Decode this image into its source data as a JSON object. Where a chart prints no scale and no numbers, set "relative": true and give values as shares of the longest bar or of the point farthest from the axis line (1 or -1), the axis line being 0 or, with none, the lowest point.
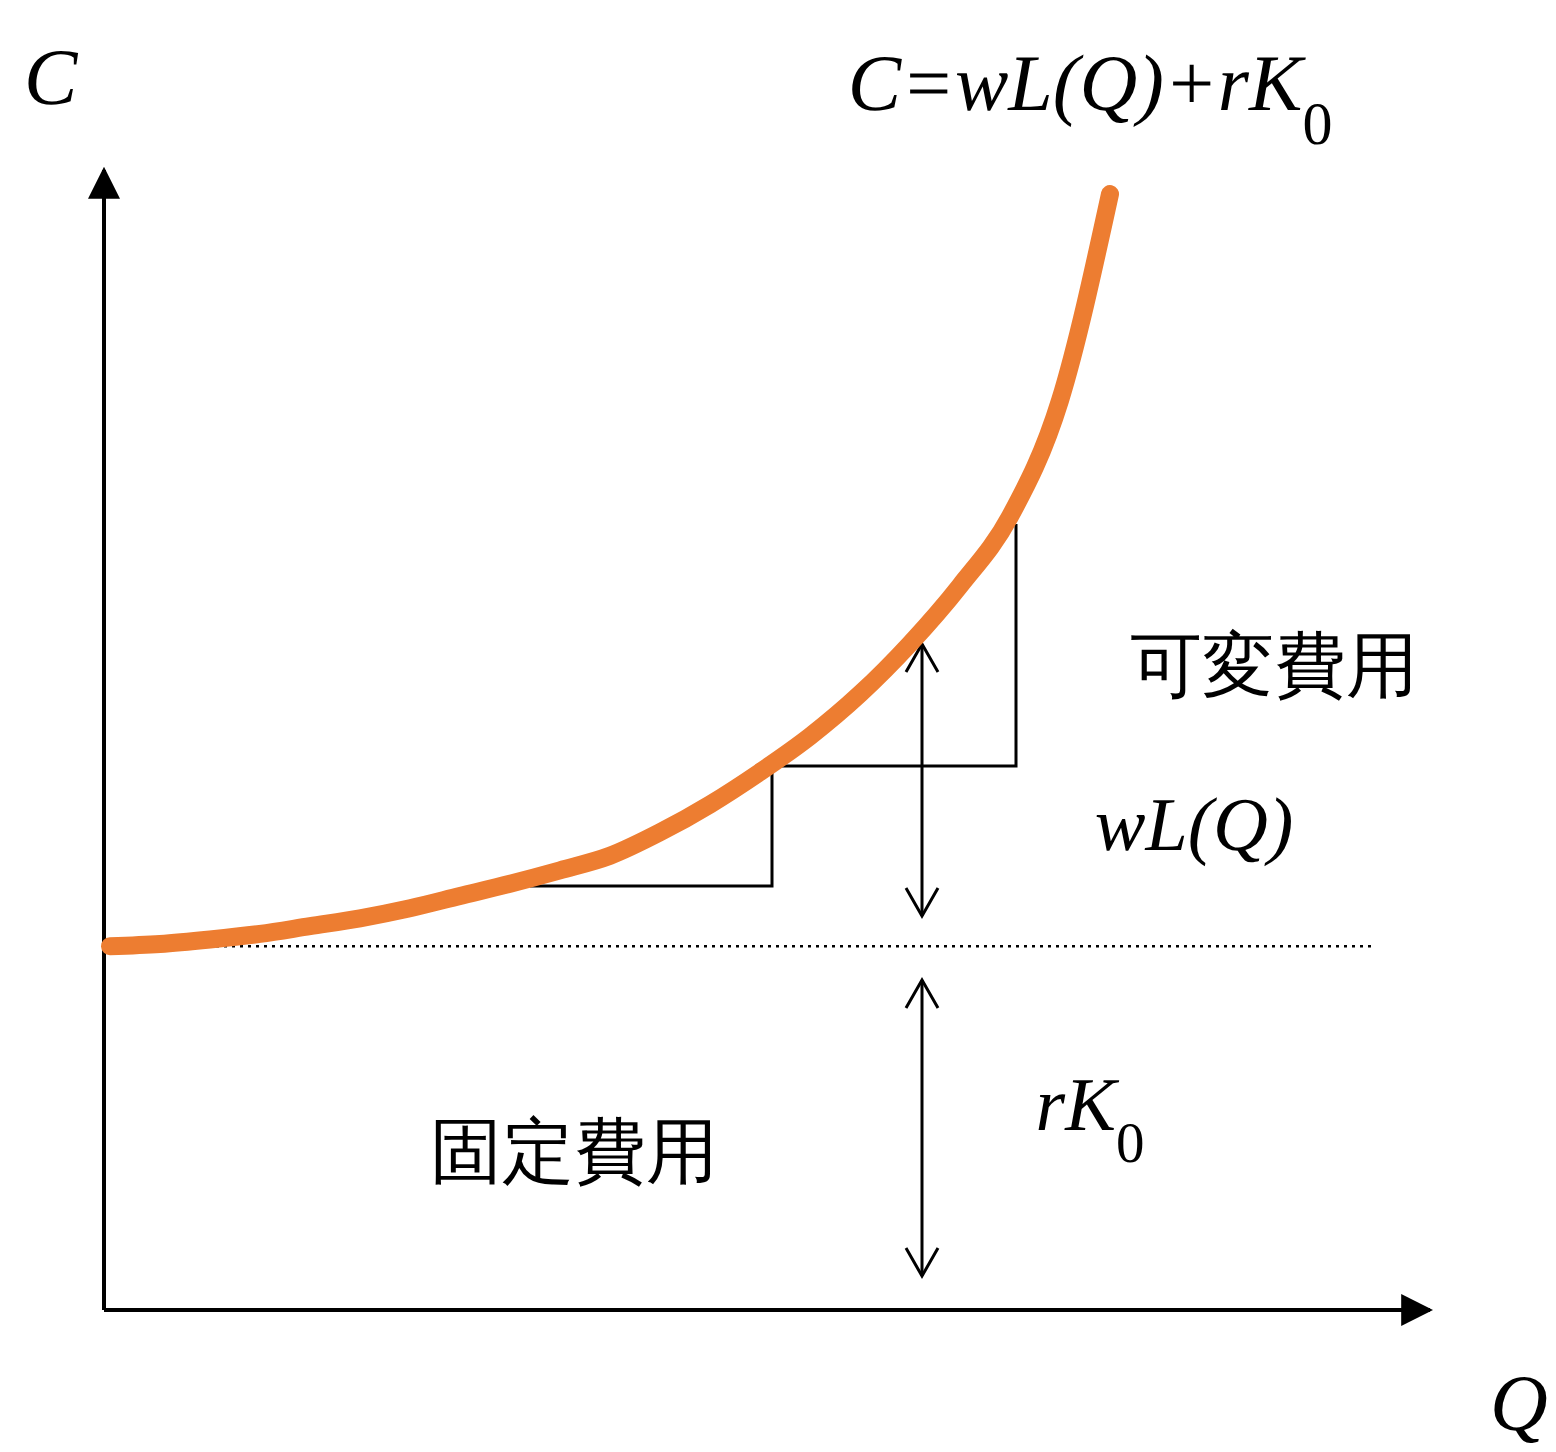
{
  "chart_data": {
    "type": "line",
    "relative": true,
    "xlabel": "Q",
    "ylabel": "C",
    "categories": [
      null,
      null,
      null,
      null,
      null,
      null,
      null,
      null,
      null,
      null,
      null,
      null,
      null,
      null,
      null,
      null,
      null,
      null,
      null,
      null,
      null,
      null,
      null,
      null,
      null,
      null,
      null
    ],
    "series": [
      {
        "color": "#ed7d31",
        "values": [
          0.326,
          0.328,
          0.332,
          0.337,
          0.344,
          0.351,
          0.36,
          0.371,
          0.382,
          0.394,
          0.407,
          0.428,
          0.453,
          0.482,
          0.514,
          0.552,
          0.597,
          0.649,
          0.711,
          0.815,
          1,
          null,
          null,
          null,
          null,
          null,
          null
        ]
      }
    ],
    "ref_lines": [
      {
        "axis": "y",
        "value": 0.326,
        "line_style": "dotted",
        "color": "#000000"
      }
    ],
    "annotations": [
      "C=wL(Q)+rK$_{0}$",
      "可変費用",
      "wL(Q)",
      "固定費用",
      "rK$_{0}$"
    ],
    "marker": "none",
    "line_style": "solid"
  }
}
